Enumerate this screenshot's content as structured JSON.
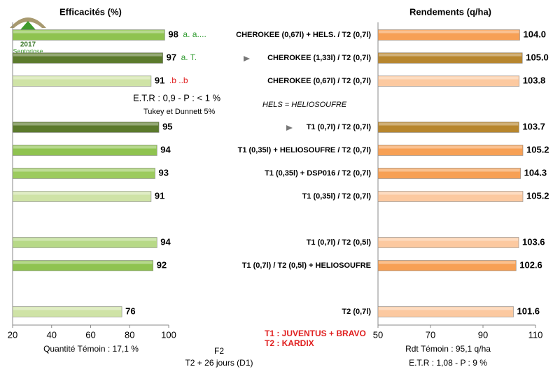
{
  "chart_data": [
    {
      "type": "hbar",
      "title": "Efficacités (%)",
      "values": [
        98,
        97,
        91,
        null,
        95,
        94,
        93,
        91,
        null,
        94,
        92,
        null,
        76
      ],
      "colors": [
        "#8fc350",
        "#5b7a2c",
        "#cfe3a6",
        null,
        "#5b7a2c",
        "#8fc350",
        "#9ccb5e",
        "#cfe3a6",
        null,
        "#b7d987",
        "#8fc350",
        null,
        "#cfe3a6"
      ],
      "xlim": [
        20,
        100
      ],
      "xticks": [
        20,
        40,
        60,
        80,
        100
      ],
      "annotations": [
        {
          "row": 0,
          "text": "a. a....",
          "color": "#2e9a2e"
        },
        {
          "row": 1,
          "text": "a. T.",
          "color": "#2e9a2e"
        },
        {
          "row": 2,
          "text": ".b ..b",
          "color": "#e02020"
        }
      ]
    },
    {
      "type": "hbar",
      "title": "Rendements (q/ha)",
      "categories": [
        "CHEROKEE (0,67l) + HELS. / T2 (0,7l)",
        "CHEROKEE (1,33l) / T2 (0,7l)",
        "CHEROKEE (0,67l) / T2 (0,7l)",
        null,
        "T1 (0,7l) / T2 (0,7l)",
        "T1 (0,35l) + HELIOSOUFRE / T2 (0,7l)",
        "T1 (0,35l) + DSP016 / T2 (0,7l)",
        "T1 (0,35l) / T2 (0,7l)",
        null,
        "T1 (0,7l) / T2 (0,5l)",
        "T1 (0,7l) / T2 (0,5l) + HELIOSOUFRE",
        null,
        "T2 (0,7l)"
      ],
      "values": [
        104.0,
        105.0,
        103.8,
        null,
        103.7,
        105.2,
        104.3,
        105.2,
        null,
        103.6,
        102.6,
        null,
        101.6
      ],
      "value_labels": [
        "104.0",
        "105.0",
        "103.8",
        null,
        "103.7",
        "105.2",
        "104.3",
        "105.2",
        null,
        "103.6",
        "102.6",
        null,
        "101.6"
      ],
      "colors": [
        "#f7a055",
        "#b7862e",
        "#fcc9a0",
        null,
        "#b7862e",
        "#f7a055",
        "#f7a055",
        "#fcc9a0",
        null,
        "#fcc9a0",
        "#f7a055",
        null,
        "#fcc9a0"
      ],
      "xlim": [
        50,
        110
      ],
      "xticks": [
        50,
        70,
        90,
        110
      ]
    }
  ],
  "texts": {
    "etr_left": "E.T.R : 0,9 - P : < 1 %",
    "tukey": "Tukey et Dunnett 5%",
    "hels": "HELS = HELIOSOUFRE",
    "quantite": "Quantité Témoin : 17,1 %",
    "f2": "F2",
    "timing": "T2 + 26 jours (D1)",
    "t1": "T1 : JUVENTUS + BRAVO",
    "t2": "T2 : KARDIX",
    "rdt": "Rdt Témoin : 95,1 q/ha",
    "etr_right": "E.T.R : 1,08 - P : 9 %",
    "logo_year": "2017",
    "logo_name": "Septoriose"
  }
}
